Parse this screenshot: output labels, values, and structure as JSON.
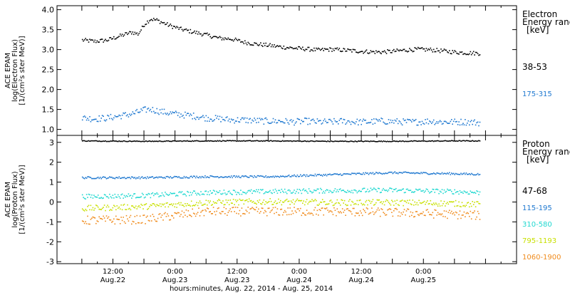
{
  "chart_data": [
    {
      "type": "scatter",
      "panel": "electron",
      "ylabel_lines": [
        "ACE EPAM",
        "log(Electron Flux)",
        "[1/(cm²s ster MeV)]"
      ],
      "legend_title_lines": [
        "Electron",
        "Energy range",
        "[keV]"
      ],
      "ylim": [
        0.85,
        4.1
      ],
      "yticks": [
        1.0,
        1.5,
        2.0,
        2.5,
        3.0,
        3.5,
        4.0
      ],
      "ytick_labels": [
        "1.0",
        "1.5",
        "2.0",
        "2.5",
        "3.0",
        "3.5",
        "4.0"
      ],
      "series": [
        {
          "name": "38-53",
          "color": "#000000",
          "x": [
            0,
            0.1,
            0.2,
            0.3,
            0.4,
            0.45,
            0.5,
            0.55,
            0.6,
            0.7,
            0.8,
            0.9,
            1.0,
            1.1,
            1.2,
            1.3,
            1.4,
            1.5,
            1.6,
            1.7,
            1.8,
            1.9,
            2.0,
            2.1,
            2.2,
            2.3,
            2.4,
            2.5,
            2.6,
            2.7,
            2.8,
            2.9,
            3.0,
            3.1,
            3.2
          ],
          "y": [
            3.25,
            3.22,
            3.25,
            3.35,
            3.45,
            3.4,
            3.65,
            3.78,
            3.75,
            3.62,
            3.52,
            3.45,
            3.38,
            3.3,
            3.28,
            3.2,
            3.15,
            3.12,
            3.08,
            3.05,
            3.03,
            3.0,
            3.02,
            3.0,
            2.98,
            2.96,
            2.95,
            2.97,
            3.0,
            3.02,
            3.01,
            2.98,
            2.95,
            2.93,
            2.92
          ]
        },
        {
          "name": "175-315",
          "color": "#1E78D0",
          "x": [
            0,
            0.1,
            0.2,
            0.3,
            0.4,
            0.5,
            0.55,
            0.6,
            0.7,
            0.8,
            0.9,
            1.0,
            1.1,
            1.2,
            1.3,
            1.4,
            1.5,
            1.6,
            1.7,
            1.8,
            1.9,
            2.0,
            2.1,
            2.2,
            2.3,
            2.4,
            2.5,
            2.6,
            2.7,
            2.8,
            2.9,
            3.0,
            3.1,
            3.2
          ],
          "y": [
            1.3,
            1.28,
            1.3,
            1.35,
            1.4,
            1.5,
            1.52,
            1.48,
            1.42,
            1.38,
            1.35,
            1.3,
            1.28,
            1.25,
            1.25,
            1.23,
            1.22,
            1.22,
            1.2,
            1.22,
            1.2,
            1.2,
            1.22,
            1.2,
            1.2,
            1.22,
            1.21,
            1.2,
            1.2,
            1.22,
            1.2,
            1.2,
            1.2,
            1.18
          ]
        }
      ]
    },
    {
      "type": "scatter",
      "panel": "proton",
      "ylabel_lines": [
        "ACE EPAM",
        "log(Proton Flux)",
        "[1/(cm²s ster MeV)]"
      ],
      "legend_title_lines": [
        "Proton",
        "Energy range",
        "[keV]"
      ],
      "ylim": [
        -3.1,
        3.35
      ],
      "yticks": [
        -3,
        -2,
        -1,
        0,
        1,
        2,
        3
      ],
      "ytick_labels": [
        "-3",
        "-2",
        "-1",
        "0",
        "1",
        "2",
        "3"
      ],
      "series": [
        {
          "name": "47-68",
          "color": "#000000",
          "x": [
            0,
            0.5,
            1.0,
            1.5,
            2.0,
            2.5,
            3.0,
            3.2
          ],
          "y": [
            3.1,
            3.08,
            3.1,
            3.1,
            3.08,
            3.08,
            3.1,
            3.1
          ]
        },
        {
          "name": "115-195",
          "color": "#1E78D0",
          "x": [
            0,
            0.5,
            1.0,
            1.5,
            2.0,
            2.5,
            2.7,
            3.0,
            3.2
          ],
          "y": [
            1.25,
            1.25,
            1.3,
            1.3,
            1.4,
            1.5,
            1.48,
            1.45,
            1.42
          ]
        },
        {
          "name": "310-580",
          "color": "#20D8D0",
          "x": [
            0,
            0.5,
            1.0,
            1.5,
            2.0,
            2.5,
            3.0,
            3.2
          ],
          "y": [
            0.3,
            0.35,
            0.5,
            0.55,
            0.6,
            0.62,
            0.55,
            0.5
          ]
        },
        {
          "name": "795-1193",
          "color": "#C8E000",
          "x": [
            0,
            0.5,
            1.0,
            1.5,
            2.0,
            2.5,
            3.0,
            3.2
          ],
          "y": [
            -0.3,
            -0.2,
            0.0,
            0.05,
            0.0,
            0.0,
            -0.05,
            -0.1
          ]
        },
        {
          "name": "1060-1900",
          "color": "#F08C1E",
          "x": [
            0,
            0.5,
            1.0,
            1.5,
            2.0,
            2.5,
            3.0,
            3.2
          ],
          "y": [
            -0.9,
            -0.85,
            -0.45,
            -0.45,
            -0.45,
            -0.5,
            -0.6,
            -0.65
          ]
        }
      ]
    }
  ],
  "x_axis": {
    "ticks": [
      {
        "x": 0.25,
        "line1": "12:00",
        "line2": "Aug.22"
      },
      {
        "x": 0.75,
        "line1": "0:00",
        "line2": "Aug.23"
      },
      {
        "x": 1.25,
        "line1": "12:00",
        "line2": "Aug.23"
      },
      {
        "x": 1.75,
        "line1": "0:00",
        "line2": "Aug.24"
      },
      {
        "x": 2.25,
        "line1": "12:00",
        "line2": "Aug.24"
      },
      {
        "x": 2.75,
        "line1": "0:00",
        "line2": "Aug.25"
      }
    ],
    "xlim": [
      -0.2,
      3.5
    ],
    "xlabel": "hours:minutes, Aug. 22, 2014 - Aug. 25, 2014"
  }
}
